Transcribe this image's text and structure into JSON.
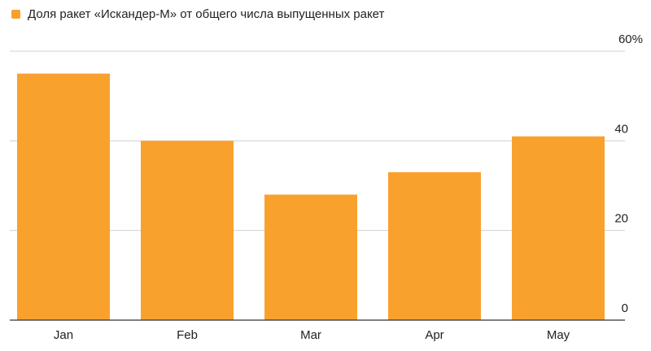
{
  "chart_data": {
    "type": "bar",
    "series": [
      {
        "name": "Доля ракет «Искандер-М» от общего числа выпущенных ракет",
        "color": "#f9a12d",
        "values": [
          55,
          40,
          28,
          33,
          41
        ]
      }
    ],
    "categories": [
      "Jan",
      "Feb",
      "Mar",
      "Apr",
      "May"
    ],
    "ylim": [
      0,
      60
    ],
    "yticks": [
      0,
      20,
      40,
      {
        "value": 60,
        "label": "60%"
      }
    ],
    "grid": true
  }
}
